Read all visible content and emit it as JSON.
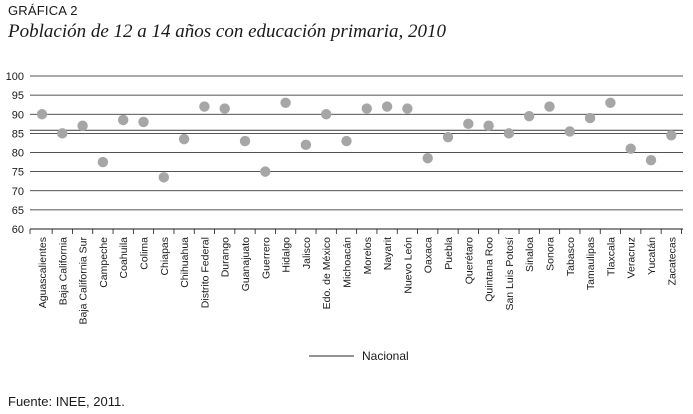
{
  "header": {
    "label": "GRÁFICA 2",
    "title": "Población de 12 a 14 años con educación primaria, 2010"
  },
  "footer": {
    "source_prefix": "Fuente: ",
    "source_org": "INEE",
    "source_suffix": ", 2011."
  },
  "colors": {
    "points": "#a6a6a6",
    "reference_line": "#555555",
    "grid": "#1a1a1a"
  },
  "chart_data": {
    "type": "scatter",
    "title": "Población de 12 a 14 años con educación primaria, 2010",
    "xlabel": "",
    "ylabel": "",
    "ylim": [
      60,
      100
    ],
    "yticks": [
      60,
      65,
      70,
      75,
      80,
      85,
      90,
      95,
      100
    ],
    "grid": true,
    "legend_position": "bottom-center",
    "categories": [
      "Aguascalientes",
      "Baja California",
      "Baja California Sur",
      "Campeche",
      "Coahuila",
      "Colima",
      "Chiapas",
      "Chihuahua",
      "Distrito Federal",
      "Durango",
      "Guanajuato",
      "Guerrero",
      "Hidalgo",
      "Jalisco",
      "Edo. de México",
      "Michoacán",
      "Morelos",
      "Nayarit",
      "Nuevo León",
      "Oaxaca",
      "Puebla",
      "Querétaro",
      "Quintana Roo",
      "San Luis Potosí",
      "Sinaloa",
      "Sonora",
      "Tabasco",
      "Tamaulipas",
      "Tlaxcala",
      "Veracruz",
      "Yucatán",
      "Zacatecas"
    ],
    "values": [
      90.0,
      85.0,
      87.0,
      77.5,
      88.5,
      88.0,
      73.5,
      83.5,
      92.0,
      91.5,
      83.0,
      75.0,
      93.0,
      82.0,
      90.0,
      83.0,
      91.5,
      92.0,
      91.5,
      78.5,
      84.0,
      87.5,
      87.0,
      85.0,
      89.5,
      92.0,
      85.5,
      89.0,
      93.0,
      81.0,
      78.0,
      84.5
    ],
    "reference": {
      "name": "Nacional",
      "value": 85.8
    }
  }
}
